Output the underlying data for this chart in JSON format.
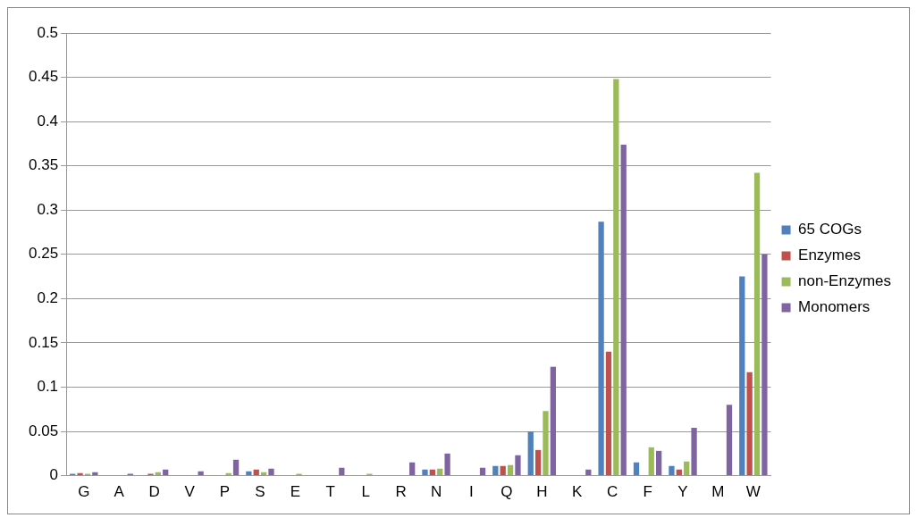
{
  "chart_data": {
    "type": "bar",
    "categories": [
      "G",
      "A",
      "D",
      "V",
      "P",
      "S",
      "E",
      "T",
      "L",
      "R",
      "N",
      "I",
      "Q",
      "H",
      "K",
      "C",
      "F",
      "Y",
      "M",
      "W"
    ],
    "series": [
      {
        "name": "65 COGs",
        "color": "#4f81bd",
        "values": [
          0.002,
          0,
          0,
          0,
          0,
          0.005,
          0,
          0,
          0,
          0,
          0.007,
          0,
          0.011,
          0.05,
          0,
          0.287,
          0.015,
          0.011,
          0,
          0.225
        ]
      },
      {
        "name": "Enzymes",
        "color": "#c0504d",
        "values": [
          0.003,
          0,
          0.002,
          0,
          0,
          0.007,
          0,
          0,
          0,
          0,
          0.007,
          0,
          0.011,
          0.029,
          0,
          0.14,
          0,
          0.007,
          0,
          0.117
        ]
      },
      {
        "name": "non-Enzymes",
        "color": "#9bbb59",
        "values": [
          0.002,
          0,
          0.004,
          0,
          0.003,
          0.004,
          0.002,
          0,
          0.002,
          0,
          0.008,
          0,
          0.012,
          0.073,
          0,
          0.448,
          0.032,
          0.016,
          0,
          0.342
        ]
      },
      {
        "name": "Monomers",
        "color": "#8064a2",
        "values": [
          0.004,
          0.002,
          0.007,
          0.005,
          0.018,
          0.008,
          0,
          0.009,
          0,
          0.015,
          0.025,
          0.009,
          0.023,
          0.123,
          0.007,
          0.374,
          0.028,
          0.054,
          0.08,
          0.25
        ]
      }
    ],
    "ylim": [
      0,
      0.5
    ],
    "yticks": [
      0,
      0.05,
      0.1,
      0.15,
      0.2,
      0.25,
      0.3,
      0.35,
      0.4,
      0.45,
      0.5
    ],
    "grid": "y",
    "legend": "right"
  }
}
